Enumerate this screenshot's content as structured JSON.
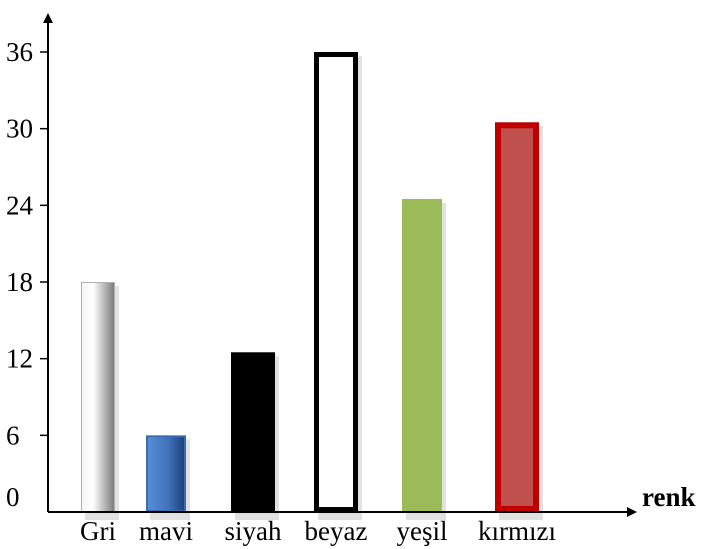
{
  "chart_data": {
    "type": "bar",
    "title": "",
    "xlabel": "renk",
    "ylabel": "",
    "ylim": [
      0,
      36
    ],
    "yticks": [
      0,
      6,
      12,
      18,
      24,
      30,
      36
    ],
    "ytick_labels": [
      "0",
      "6",
      "12",
      "18",
      "24",
      "30",
      "36"
    ],
    "categories": [
      "Gri",
      "mavi",
      "siyah",
      "beyaz",
      "yeşil",
      "kırmızı"
    ],
    "values": [
      18,
      6,
      12.5,
      36,
      24.5,
      30.5
    ],
    "bar_colors": [
      "#b0b0b0",
      "#4a7ec4",
      "#000000",
      "#ffffff",
      "#9bbb59",
      "#c0504d"
    ],
    "bar_outlines": [
      "#b0b0b0",
      "#3a6db0",
      "#000000",
      "#000000",
      "#9bbb59",
      "#c00000"
    ],
    "grid": false,
    "legend": "none"
  }
}
